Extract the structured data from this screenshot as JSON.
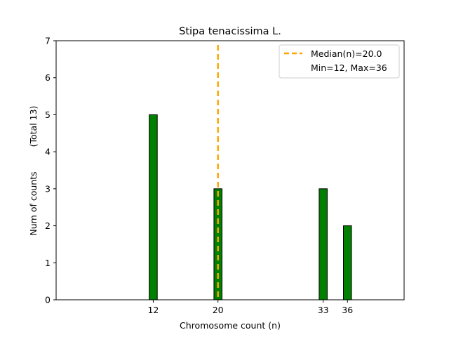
{
  "chart_data": {
    "type": "bar",
    "title": "Stipa tenacissima L.",
    "xlabel": "Chromosome count (n)",
    "ylabel_left": "Num of counts",
    "ylabel_right": "(Total 13)",
    "x": [
      12,
      20,
      33,
      36
    ],
    "values": [
      5,
      3,
      3,
      2
    ],
    "bar_color": "#008000",
    "bar_edge_color": "#000000",
    "xlim": [
      0,
      43
    ],
    "ylim": [
      0,
      7
    ],
    "yticks": [
      0,
      1,
      2,
      3,
      4,
      5,
      6,
      7
    ],
    "xticks": [
      12,
      20,
      33,
      36
    ],
    "median": 20.0,
    "median_color": "#FFA500",
    "legend": {
      "position": "top-right",
      "entries": [
        "Median(n)=20.0",
        "Min=12, Max=36"
      ]
    }
  }
}
